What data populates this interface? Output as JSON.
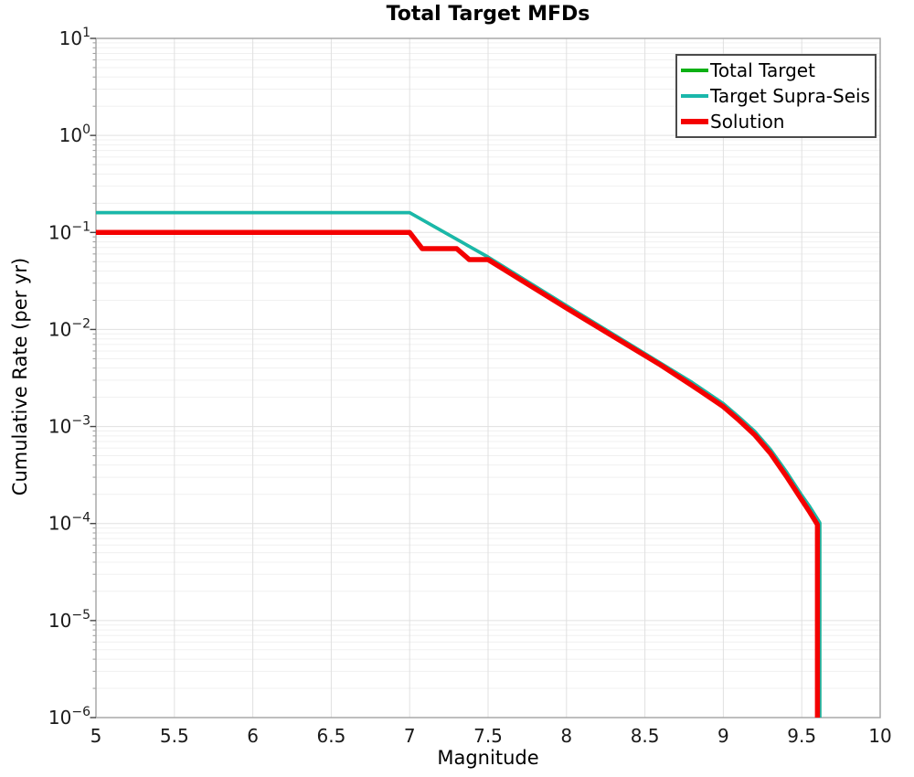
{
  "chart_data": {
    "type": "line",
    "title": "Total Target MFDs",
    "xlabel": "Magnitude",
    "ylabel": "Cumulative Rate (per yr)",
    "x_axis": {
      "min": 5,
      "max": 10,
      "ticks": [
        5,
        5.5,
        6,
        6.5,
        7,
        7.5,
        8,
        8.5,
        9,
        9.5,
        10
      ],
      "tick_labels": [
        "5",
        "5.5",
        "6",
        "6.5",
        "7",
        "7.5",
        "8",
        "8.5",
        "9",
        "9.5",
        "10"
      ]
    },
    "y_axis": {
      "scale": "log",
      "min_exp": -6,
      "max_exp": 1,
      "tick_exponents": [
        1,
        0,
        -1,
        -2,
        -3,
        -4,
        -5,
        -6
      ]
    },
    "grid": {
      "major": true,
      "minor": true
    },
    "legend": {
      "position": "top-right"
    },
    "series": [
      {
        "name": "Total Target",
        "color": "#0cb014",
        "line_width": 3.5,
        "swatch_height": 4,
        "points": [
          [
            5.0,
            0.16
          ],
          [
            7.0,
            0.16
          ],
          [
            7.5,
            0.0558
          ],
          [
            8.0,
            0.0176
          ],
          [
            8.6,
            0.0045
          ],
          [
            8.8,
            0.00285
          ],
          [
            9.0,
            0.00172
          ],
          [
            9.1,
            0.00125
          ],
          [
            9.2,
            0.00089
          ],
          [
            9.3,
            0.00058
          ],
          [
            9.4,
            0.000345
          ],
          [
            9.5,
            0.000195
          ],
          [
            9.55,
            0.00015
          ],
          [
            9.615,
            0.000102
          ],
          [
            9.615,
            1e-06
          ]
        ]
      },
      {
        "name": "Target Supra-Seis",
        "color": "#1ab7ab",
        "line_width": 3.5,
        "swatch_height": 4,
        "points": [
          [
            5.0,
            0.16
          ],
          [
            7.0,
            0.16
          ],
          [
            7.5,
            0.0558
          ],
          [
            8.0,
            0.0176
          ],
          [
            8.6,
            0.0045
          ],
          [
            8.8,
            0.00285
          ],
          [
            9.0,
            0.00172
          ],
          [
            9.1,
            0.00125
          ],
          [
            9.2,
            0.00089
          ],
          [
            9.3,
            0.00058
          ],
          [
            9.4,
            0.000345
          ],
          [
            9.5,
            0.000195
          ],
          [
            9.55,
            0.00015
          ],
          [
            9.615,
            0.000102
          ],
          [
            9.615,
            1e-06
          ]
        ]
      },
      {
        "name": "Solution",
        "color": "#f40000",
        "line_width": 5.5,
        "swatch_height": 6,
        "points": [
          [
            5.0,
            0.1
          ],
          [
            7.0,
            0.1
          ],
          [
            7.08,
            0.068
          ],
          [
            7.3,
            0.068
          ],
          [
            7.38,
            0.0525
          ],
          [
            7.5,
            0.0525
          ],
          [
            8.0,
            0.0166
          ],
          [
            8.6,
            0.0043
          ],
          [
            8.8,
            0.00265
          ],
          [
            9.0,
            0.0016
          ],
          [
            9.1,
            0.00116
          ],
          [
            9.2,
            0.00082
          ],
          [
            9.3,
            0.00053
          ],
          [
            9.4,
            0.00031
          ],
          [
            9.5,
            0.000175
          ],
          [
            9.55,
            0.000132
          ],
          [
            9.6,
            9.75e-05
          ],
          [
            9.6,
            1e-06
          ]
        ]
      }
    ]
  }
}
